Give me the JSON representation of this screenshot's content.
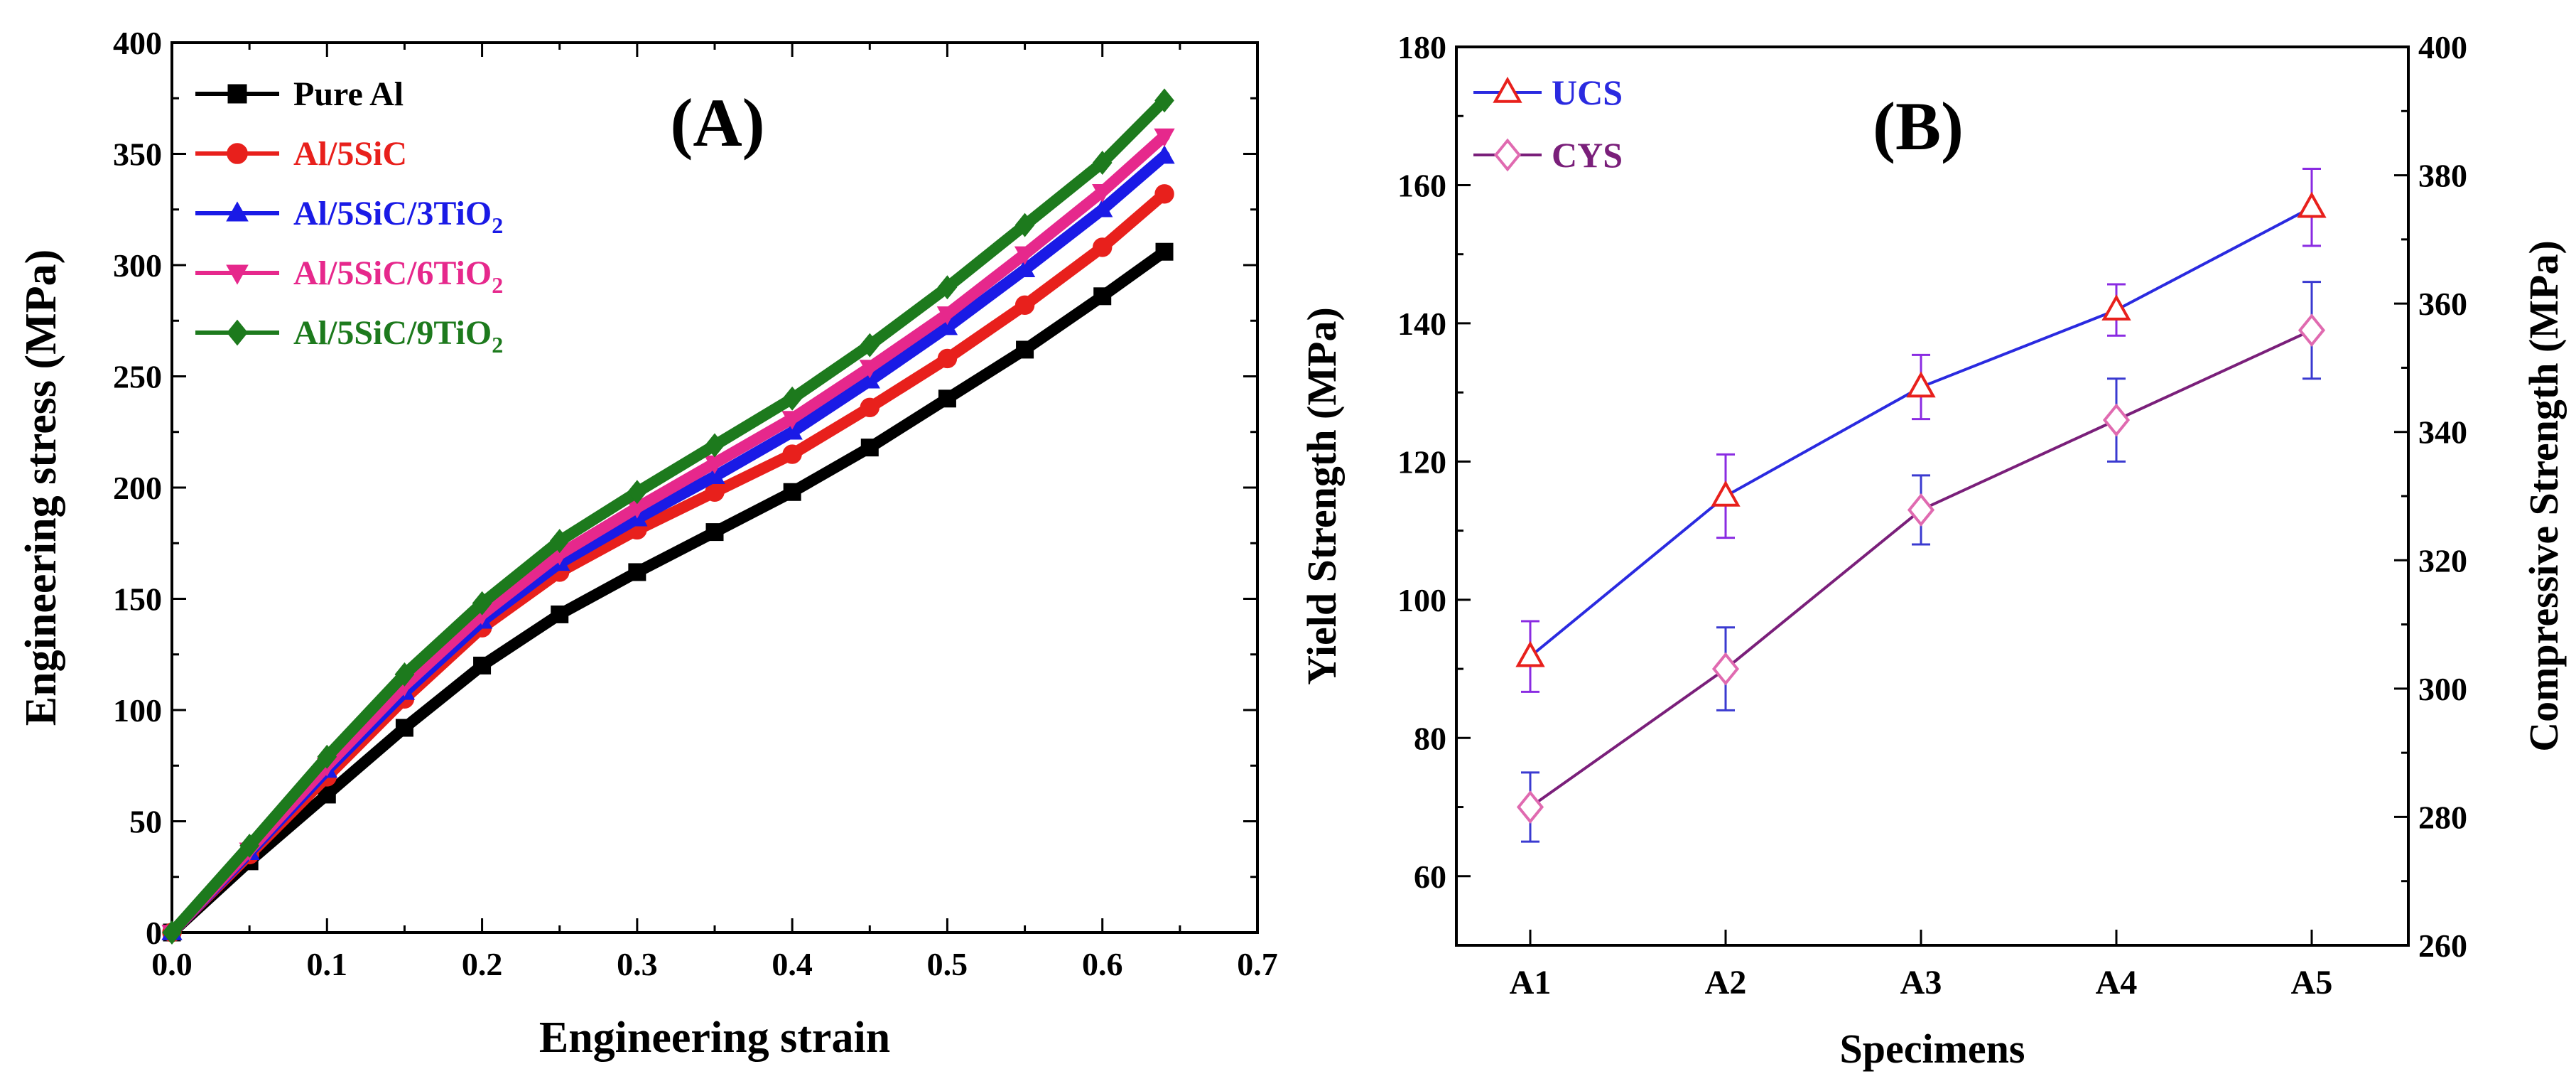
{
  "chart_data": [
    {
      "panel": "(A)",
      "type": "line",
      "xlabel": "Engineering strain",
      "ylabel": "Engineering stress (MPa)",
      "xlim": [
        0.0,
        0.7
      ],
      "ylim": [
        0,
        400
      ],
      "xticks": [
        "0.0",
        "0.1",
        "0.2",
        "0.3",
        "0.4",
        "0.5",
        "0.6",
        "0.7"
      ],
      "yticks": [
        "0",
        "50",
        "100",
        "150",
        "200",
        "250",
        "300",
        "350",
        "400"
      ],
      "legend_position": "top-left",
      "series": [
        {
          "name": "Pure Al",
          "sub": "",
          "color": "#000000",
          "marker": "square",
          "x": [
            0,
            0.05,
            0.1,
            0.15,
            0.2,
            0.25,
            0.3,
            0.35,
            0.4,
            0.45,
            0.5,
            0.55,
            0.6,
            0.64
          ],
          "y": [
            0,
            32,
            62,
            92,
            120,
            143,
            162,
            180,
            198,
            218,
            240,
            262,
            286,
            306
          ]
        },
        {
          "name": "Al/5SiC",
          "sub": "",
          "color": "#e8201c",
          "marker": "circle",
          "x": [
            0,
            0.05,
            0.1,
            0.15,
            0.2,
            0.25,
            0.3,
            0.35,
            0.4,
            0.45,
            0.5,
            0.55,
            0.6,
            0.64
          ],
          "y": [
            0,
            35,
            70,
            105,
            137,
            162,
            181,
            198,
            215,
            236,
            258,
            282,
            308,
            332
          ]
        },
        {
          "name": "Al/5SiC/3TiO",
          "sub": "2",
          "color": "#1a1ae6",
          "marker": "triangle-up",
          "x": [
            0,
            0.05,
            0.1,
            0.15,
            0.2,
            0.25,
            0.3,
            0.35,
            0.4,
            0.45,
            0.5,
            0.55,
            0.6,
            0.64
          ],
          "y": [
            0,
            36,
            73,
            108,
            140,
            166,
            186,
            205,
            225,
            248,
            272,
            298,
            325,
            349
          ]
        },
        {
          "name": "Al/5SiC/6TiO",
          "sub": "2",
          "color": "#e6288c",
          "marker": "triangle-down",
          "x": [
            0,
            0.05,
            0.1,
            0.15,
            0.2,
            0.25,
            0.3,
            0.35,
            0.4,
            0.45,
            0.5,
            0.55,
            0.6,
            0.64
          ],
          "y": [
            0,
            37,
            75,
            111,
            143,
            170,
            191,
            211,
            231,
            254,
            278,
            305,
            333,
            358
          ]
        },
        {
          "name": "Al/5SiC/9TiO",
          "sub": "2",
          "color": "#1d7a1d",
          "marker": "diamond",
          "x": [
            0,
            0.05,
            0.1,
            0.15,
            0.2,
            0.25,
            0.3,
            0.35,
            0.4,
            0.45,
            0.5,
            0.55,
            0.6,
            0.64
          ],
          "y": [
            0,
            39,
            79,
            116,
            148,
            176,
            198,
            219,
            240,
            264,
            290,
            318,
            346,
            374
          ]
        }
      ]
    },
    {
      "panel": "(B)",
      "type": "line",
      "xlabel": "Specimens",
      "ylabel_left": "Yield Strength (MPa)",
      "ylabel_right": "Compressive Strength (MPa)",
      "categories": [
        "A1",
        "A2",
        "A3",
        "A4",
        "A5"
      ],
      "ylim_left": [
        50,
        180
      ],
      "ylim_right": [
        260,
        400
      ],
      "yticks_left": [
        "60",
        "80",
        "100",
        "120",
        "140",
        "160",
        "180"
      ],
      "yticks_right": [
        "260",
        "280",
        "300",
        "320",
        "340",
        "360",
        "380",
        "400"
      ],
      "legend_position": "top-left",
      "series": [
        {
          "name": "UCS",
          "axis": "right",
          "line_color": "#2a2ae0",
          "marker_color": "#e8201c",
          "marker": "triangle-up",
          "values": [
            305,
            330,
            347,
            359,
            375
          ],
          "errors": [
            5.5,
            6.5,
            5,
            4,
            6
          ]
        },
        {
          "name": "CYS",
          "axis": "left",
          "line_color": "#7a1f7a",
          "marker_color": "#e06ab0",
          "marker": "diamond",
          "values": [
            70,
            90,
            113,
            126,
            139
          ],
          "errors": [
            5,
            6,
            5,
            6,
            7
          ]
        }
      ]
    }
  ]
}
